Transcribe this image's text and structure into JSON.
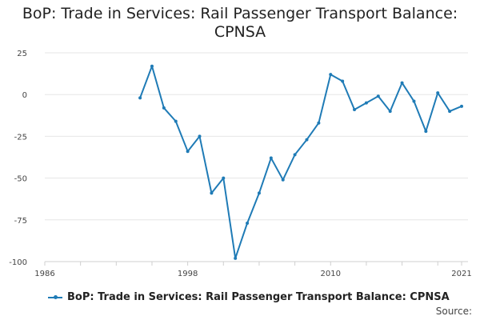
{
  "chart_data": {
    "type": "line",
    "title": "BoP: Trade in Services: Rail Passenger Transport Balance:",
    "title_line2": "CPNSA",
    "xlabel": "",
    "ylabel": "",
    "xlim": [
      1986,
      2021
    ],
    "ylim": [
      -100,
      25
    ],
    "x_ticks": [
      1986,
      1998,
      2010,
      2021
    ],
    "y_ticks": [
      25,
      0,
      -25,
      -50,
      -75,
      -100
    ],
    "grid": true,
    "legend_position": "bottom",
    "series": [
      {
        "name": "BoP: Trade in Services: Rail Passenger Transport Balance: CPNSA",
        "color": "#1f7bb6",
        "x": [
          1994,
          1995,
          1996,
          1997,
          1998,
          1999,
          2000,
          2001,
          2002,
          2003,
          2004,
          2005,
          2006,
          2007,
          2008,
          2009,
          2010,
          2011,
          2012,
          2013,
          2014,
          2015,
          2016,
          2017,
          2018,
          2019,
          2020,
          2021
        ],
        "values": [
          -2,
          17,
          -8,
          -16,
          -34,
          -25,
          -59,
          -50,
          -98,
          -77,
          -59,
          -38,
          -51,
          -36,
          -27,
          -17,
          12,
          8,
          -9,
          -5,
          -1,
          -10,
          7,
          -4,
          -22,
          1,
          -10,
          -7
        ]
      }
    ]
  },
  "source_label": "Source:"
}
